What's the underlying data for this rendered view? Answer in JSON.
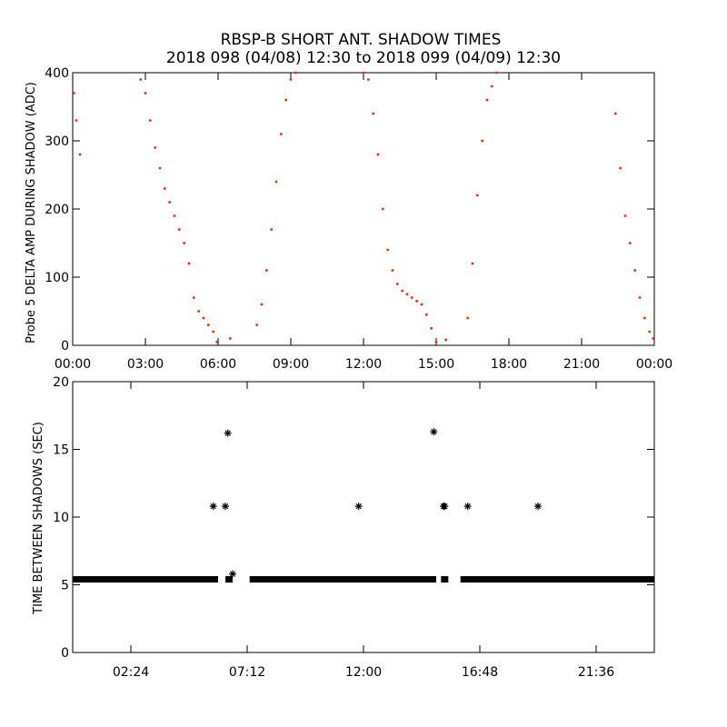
{
  "title": "RBSP-B SHORT ANT. SHADOW TIMES",
  "subtitle": "2018 098 (04/08) 12:30 to 2018 099 (04/09) 12:30",
  "colors": {
    "upper_points": "#ff2200",
    "lower_points": "#000000",
    "axes": "#000000"
  },
  "chart_data": [
    {
      "type": "scatter",
      "ylabel": "Probe 5 DELTA AMP DURING SHADOW (ADC)",
      "xlabel": "",
      "x_units": "hours",
      "xlim": [
        0,
        24
      ],
      "ylim": [
        0,
        400
      ],
      "xtick_labels": [
        "00:00",
        "03:00",
        "06:00",
        "09:00",
        "12:00",
        "15:00",
        "18:00",
        "21:00",
        "00:00"
      ],
      "ytick_labels": [
        "0",
        "100",
        "200",
        "300",
        "400"
      ],
      "grid": false,
      "series": [
        {
          "marker": "dot",
          "color": "#ff2200",
          "x": [
            0.05,
            0.15,
            0.3,
            2.8,
            3.0,
            3.2,
            3.4,
            3.6,
            3.8,
            4.0,
            4.2,
            4.4,
            4.6,
            4.8,
            5.0,
            5.2,
            5.4,
            5.6,
            5.8,
            5.95,
            6.5,
            7.6,
            7.8,
            8.0,
            8.2,
            8.4,
            8.6,
            8.8,
            9.0,
            9.2,
            12.0,
            12.2,
            12.4,
            12.6,
            12.8,
            13.0,
            13.2,
            13.4,
            13.6,
            13.8,
            14.0,
            14.2,
            14.4,
            14.6,
            14.8,
            15.0,
            15.4,
            16.3,
            16.5,
            16.7,
            16.9,
            17.1,
            17.3,
            17.5,
            22.4,
            22.6,
            22.8,
            23.0,
            23.2,
            23.4,
            23.6,
            23.8,
            23.95
          ],
          "y": [
            370,
            330,
            280,
            390,
            370,
            330,
            290,
            260,
            230,
            210,
            190,
            170,
            150,
            120,
            70,
            50,
            40,
            30,
            20,
            5,
            10,
            30,
            60,
            110,
            170,
            240,
            310,
            360,
            390,
            400,
            400,
            390,
            340,
            280,
            200,
            140,
            110,
            90,
            80,
            75,
            70,
            65,
            60,
            45,
            25,
            5,
            8,
            40,
            120,
            220,
            300,
            360,
            380,
            400,
            340,
            260,
            190,
            150,
            110,
            70,
            40,
            20,
            10
          ]
        }
      ]
    },
    {
      "type": "scatter",
      "ylabel": "TIME BETWEEN SHADOWS (SEC)",
      "xlabel": "",
      "x_units": "hours",
      "xlim": [
        0,
        24
      ],
      "ylim": [
        0,
        20
      ],
      "xtick_labels": [
        "02:24",
        "07:12",
        "12:00",
        "16:48",
        "21:36"
      ],
      "ytick_labels": [
        "0",
        "5",
        "10",
        "15",
        "20"
      ],
      "grid": false,
      "series": [
        {
          "marker": "asterisk",
          "color": "#000000",
          "baseline_value": 5.4,
          "baseline_segments": [
            [
              0.0,
              6.0
            ],
            [
              6.3,
              6.6
            ],
            [
              7.3,
              15.0
            ],
            [
              15.2,
              15.5
            ],
            [
              16.0,
              24.0
            ]
          ],
          "x": [
            5.8,
            6.3,
            6.4,
            6.6,
            11.8,
            14.9,
            15.3,
            15.35,
            16.3,
            19.2
          ],
          "y": [
            10.8,
            10.8,
            16.2,
            5.8,
            10.8,
            16.3,
            10.8,
            10.8,
            10.8,
            10.8
          ]
        }
      ]
    }
  ]
}
